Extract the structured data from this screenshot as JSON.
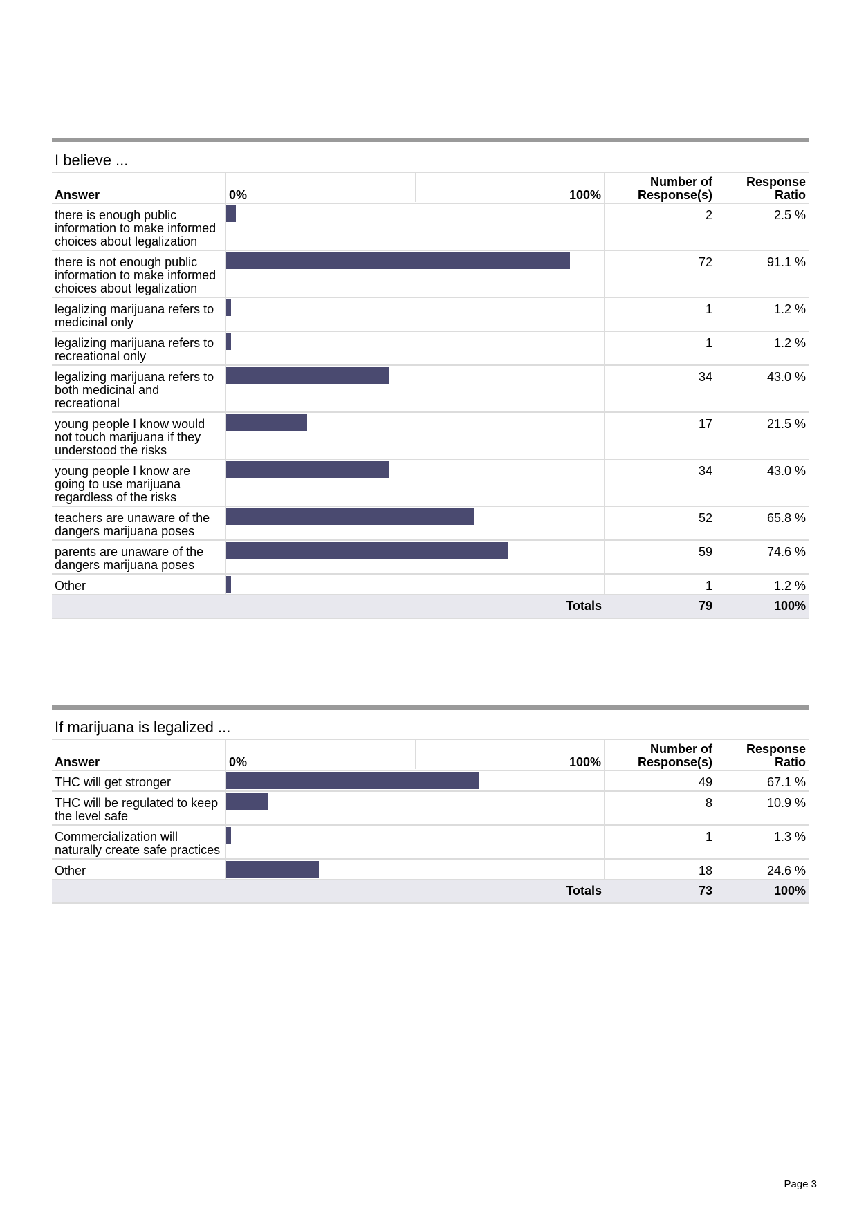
{
  "header": {
    "answer": "Answer",
    "scale_min": "0%",
    "scale_max": "100%",
    "count": "Number of Response(s)",
    "ratio": "Response Ratio",
    "totals": "Totals"
  },
  "sections": [
    {
      "title": "I believe ...",
      "rows": [
        {
          "label": "there is enough public information to make informed choices about legalization",
          "count": "2",
          "ratio": "2.5 %",
          "pct": 2.5
        },
        {
          "label": "there is not enough public information to make informed choices about legalization",
          "count": "72",
          "ratio": "91.1 %",
          "pct": 91.1
        },
        {
          "label": "legalizing marijuana refers to medicinal only",
          "count": "1",
          "ratio": "1.2 %",
          "pct": 1.2
        },
        {
          "label": "legalizing marijuana refers to recreational only",
          "count": "1",
          "ratio": "1.2 %",
          "pct": 1.2
        },
        {
          "label": "legalizing marijuana refers to both medicinal and recreational",
          "count": "34",
          "ratio": "43.0 %",
          "pct": 43.0
        },
        {
          "label": "young people I know would not touch marijuana if they understood the risks",
          "count": "17",
          "ratio": "21.5 %",
          "pct": 21.5
        },
        {
          "label": "young people I know are going to use marijuana regardless of the risks",
          "count": "34",
          "ratio": "43.0 %",
          "pct": 43.0
        },
        {
          "label": "teachers are unaware of the dangers marijuana poses",
          "count": "52",
          "ratio": "65.8 %",
          "pct": 65.8
        },
        {
          "label": "parents are unaware of the dangers marijuana poses",
          "count": "59",
          "ratio": "74.6 %",
          "pct": 74.6
        },
        {
          "label": "Other",
          "count": "1",
          "ratio": "1.2 %",
          "pct": 1.2
        }
      ],
      "total_count": "79",
      "total_ratio": "100%"
    },
    {
      "title": "If marijuana is legalized ...",
      "rows": [
        {
          "label": "THC will get stronger",
          "count": "49",
          "ratio": "67.1 %",
          "pct": 67.1
        },
        {
          "label": "THC will be regulated to keep the level safe",
          "count": "8",
          "ratio": "10.9 %",
          "pct": 10.9
        },
        {
          "label": "Commercialization will naturally create safe practices",
          "count": "1",
          "ratio": "1.3 %",
          "pct": 1.3
        },
        {
          "label": "Other",
          "count": "18",
          "ratio": "24.6 %",
          "pct": 24.6
        }
      ],
      "total_count": "73",
      "total_ratio": "100%"
    }
  ],
  "page": "Page 3",
  "colors": {
    "bar": "#4a4a70",
    "rule": "#9a9a9a",
    "totals_bg": "#e8e8ee"
  }
}
